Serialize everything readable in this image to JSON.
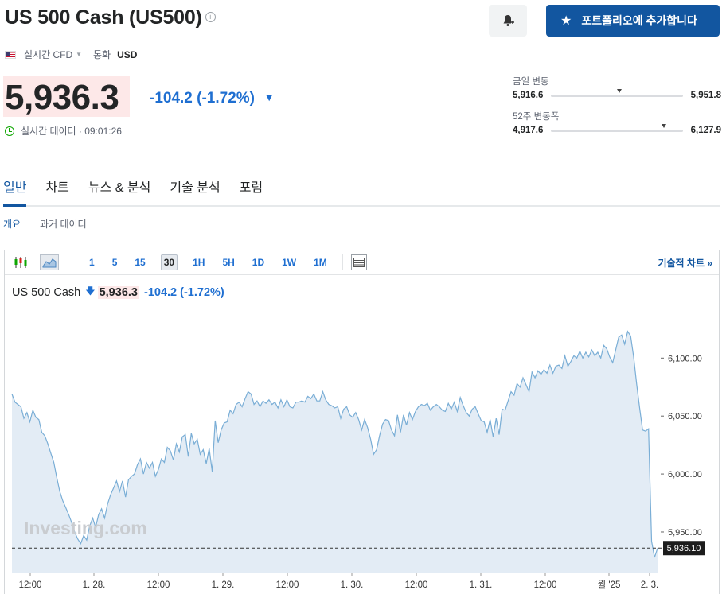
{
  "header": {
    "title": "US 500 Cash (US500)",
    "info_icon": "info-icon",
    "portfolio_label": "포트폴리오에 추가합니다",
    "bell_icon": "bell-plus-icon",
    "star_icon": "star-icon"
  },
  "meta": {
    "flag": "us-flag-icon",
    "realtime": "실시간 CFD",
    "currency_label": "통화",
    "currency": "USD"
  },
  "quote": {
    "price": "5,936.3",
    "change": "-104.2",
    "change_pct": "(-1.72%)",
    "direction": "down",
    "status": "실시간 데이터 · 09:01:26"
  },
  "ranges": {
    "day": {
      "label": "금일 변동",
      "low": "5,916.6",
      "high": "5,951.8",
      "position": 0.5
    },
    "week52": {
      "label": "52주 변동폭",
      "low": "4,917.6",
      "high": "6,127.9",
      "position": 0.84
    }
  },
  "tabs": [
    "일반",
    "차트",
    "뉴스 & 분석",
    "기술 분석",
    "포럼"
  ],
  "active_tab": 0,
  "subtabs": [
    "개요",
    "과거 데이터"
  ],
  "active_subtab": 0,
  "toolbar": {
    "intervals": [
      "1",
      "5",
      "15",
      "30",
      "1H",
      "5H",
      "1D",
      "1W",
      "1M"
    ],
    "selected_interval": "30",
    "tech_chart_label": "기술적 차트 »"
  },
  "legend": {
    "name": "US 500 Cash",
    "price": "5,936.3",
    "change": "-104.2",
    "change_pct": "(-1.72%)"
  },
  "watermark": "Investing.com",
  "colors": {
    "accent": "#1256a0",
    "down": "#1f6fd1",
    "line": "#7aaed6",
    "fill": "#e3ecf5"
  },
  "chart_data": {
    "type": "area",
    "x_ticks": [
      "12:00",
      "1. 28.",
      "12:00",
      "1. 29.",
      "12:00",
      "1. 30.",
      "12:00",
      "1. 31.",
      "12:00",
      "월 '25",
      "2. 3."
    ],
    "y_ticks": [
      "6,100.00",
      "6,050.00",
      "6,000.00",
      "5,950.00"
    ],
    "ylim": [
      5915,
      6140
    ],
    "current_price_label": "5,936.10",
    "current_price": 5936.1,
    "values": [
      6069,
      6062,
      6060,
      6058,
      6048,
      6053,
      6045,
      6055,
      6049,
      6047,
      6036,
      6033,
      6026,
      6018,
      6010,
      5997,
      5985,
      5977,
      5971,
      5965,
      5958,
      5950,
      5944,
      5940,
      5947,
      5943,
      5955,
      5962,
      5954,
      5965,
      5970,
      5962,
      5974,
      5982,
      5988,
      5994,
      5985,
      5994,
      5980,
      5995,
      5998,
      6000,
      6008,
      6013,
      6000,
      6010,
      6005,
      6010,
      5998,
      6004,
      6013,
      6010,
      6023,
      6020,
      6012,
      6026,
      6019,
      6032,
      6034,
      6015,
      6035,
      6026,
      6030,
      6017,
      6021,
      6009,
      6022,
      6002,
      6046,
      6027,
      6038,
      6044,
      6045,
      6055,
      6052,
      6060,
      6062,
      6058,
      6065,
      6071,
      6069,
      6060,
      6063,
      6058,
      6063,
      6061,
      6064,
      6060,
      6062,
      6057,
      6064,
      6058,
      6064,
      6058,
      6057,
      6062,
      6062,
      6063,
      6062,
      6067,
      6065,
      6069,
      6063,
      6063,
      6071,
      6064,
      6060,
      6059,
      6057,
      6058,
      6048,
      6056,
      6058,
      6051,
      6049,
      6053,
      6047,
      6038,
      6047,
      6040,
      6030,
      6017,
      6021,
      6033,
      6043,
      6047,
      6046,
      6038,
      6033,
      6051,
      6036,
      6051,
      6042,
      6053,
      6047,
      6054,
      6058,
      6060,
      6059,
      6061,
      6055,
      6058,
      6060,
      6058,
      6055,
      6054,
      6061,
      6056,
      6062,
      6054,
      6066,
      6059,
      6053,
      6050,
      6056,
      6058,
      6052,
      6046,
      6045,
      6036,
      6047,
      6032,
      6048,
      6034,
      6056,
      6055,
      6063,
      6071,
      6068,
      6078,
      6075,
      6083,
      6077,
      6071,
      6088,
      6083,
      6089,
      6086,
      6090,
      6087,
      6094,
      6087,
      6093,
      6094,
      6091,
      6102,
      6093,
      6097,
      6102,
      6100,
      6106,
      6100,
      6105,
      6101,
      6107,
      6102,
      6105,
      6100,
      6111,
      6108,
      6101,
      6096,
      6107,
      6118,
      6120,
      6112,
      6123,
      6119,
      6101,
      6078,
      6057,
      6038,
      6037,
      6039,
      5942,
      5928,
      5936
    ]
  }
}
